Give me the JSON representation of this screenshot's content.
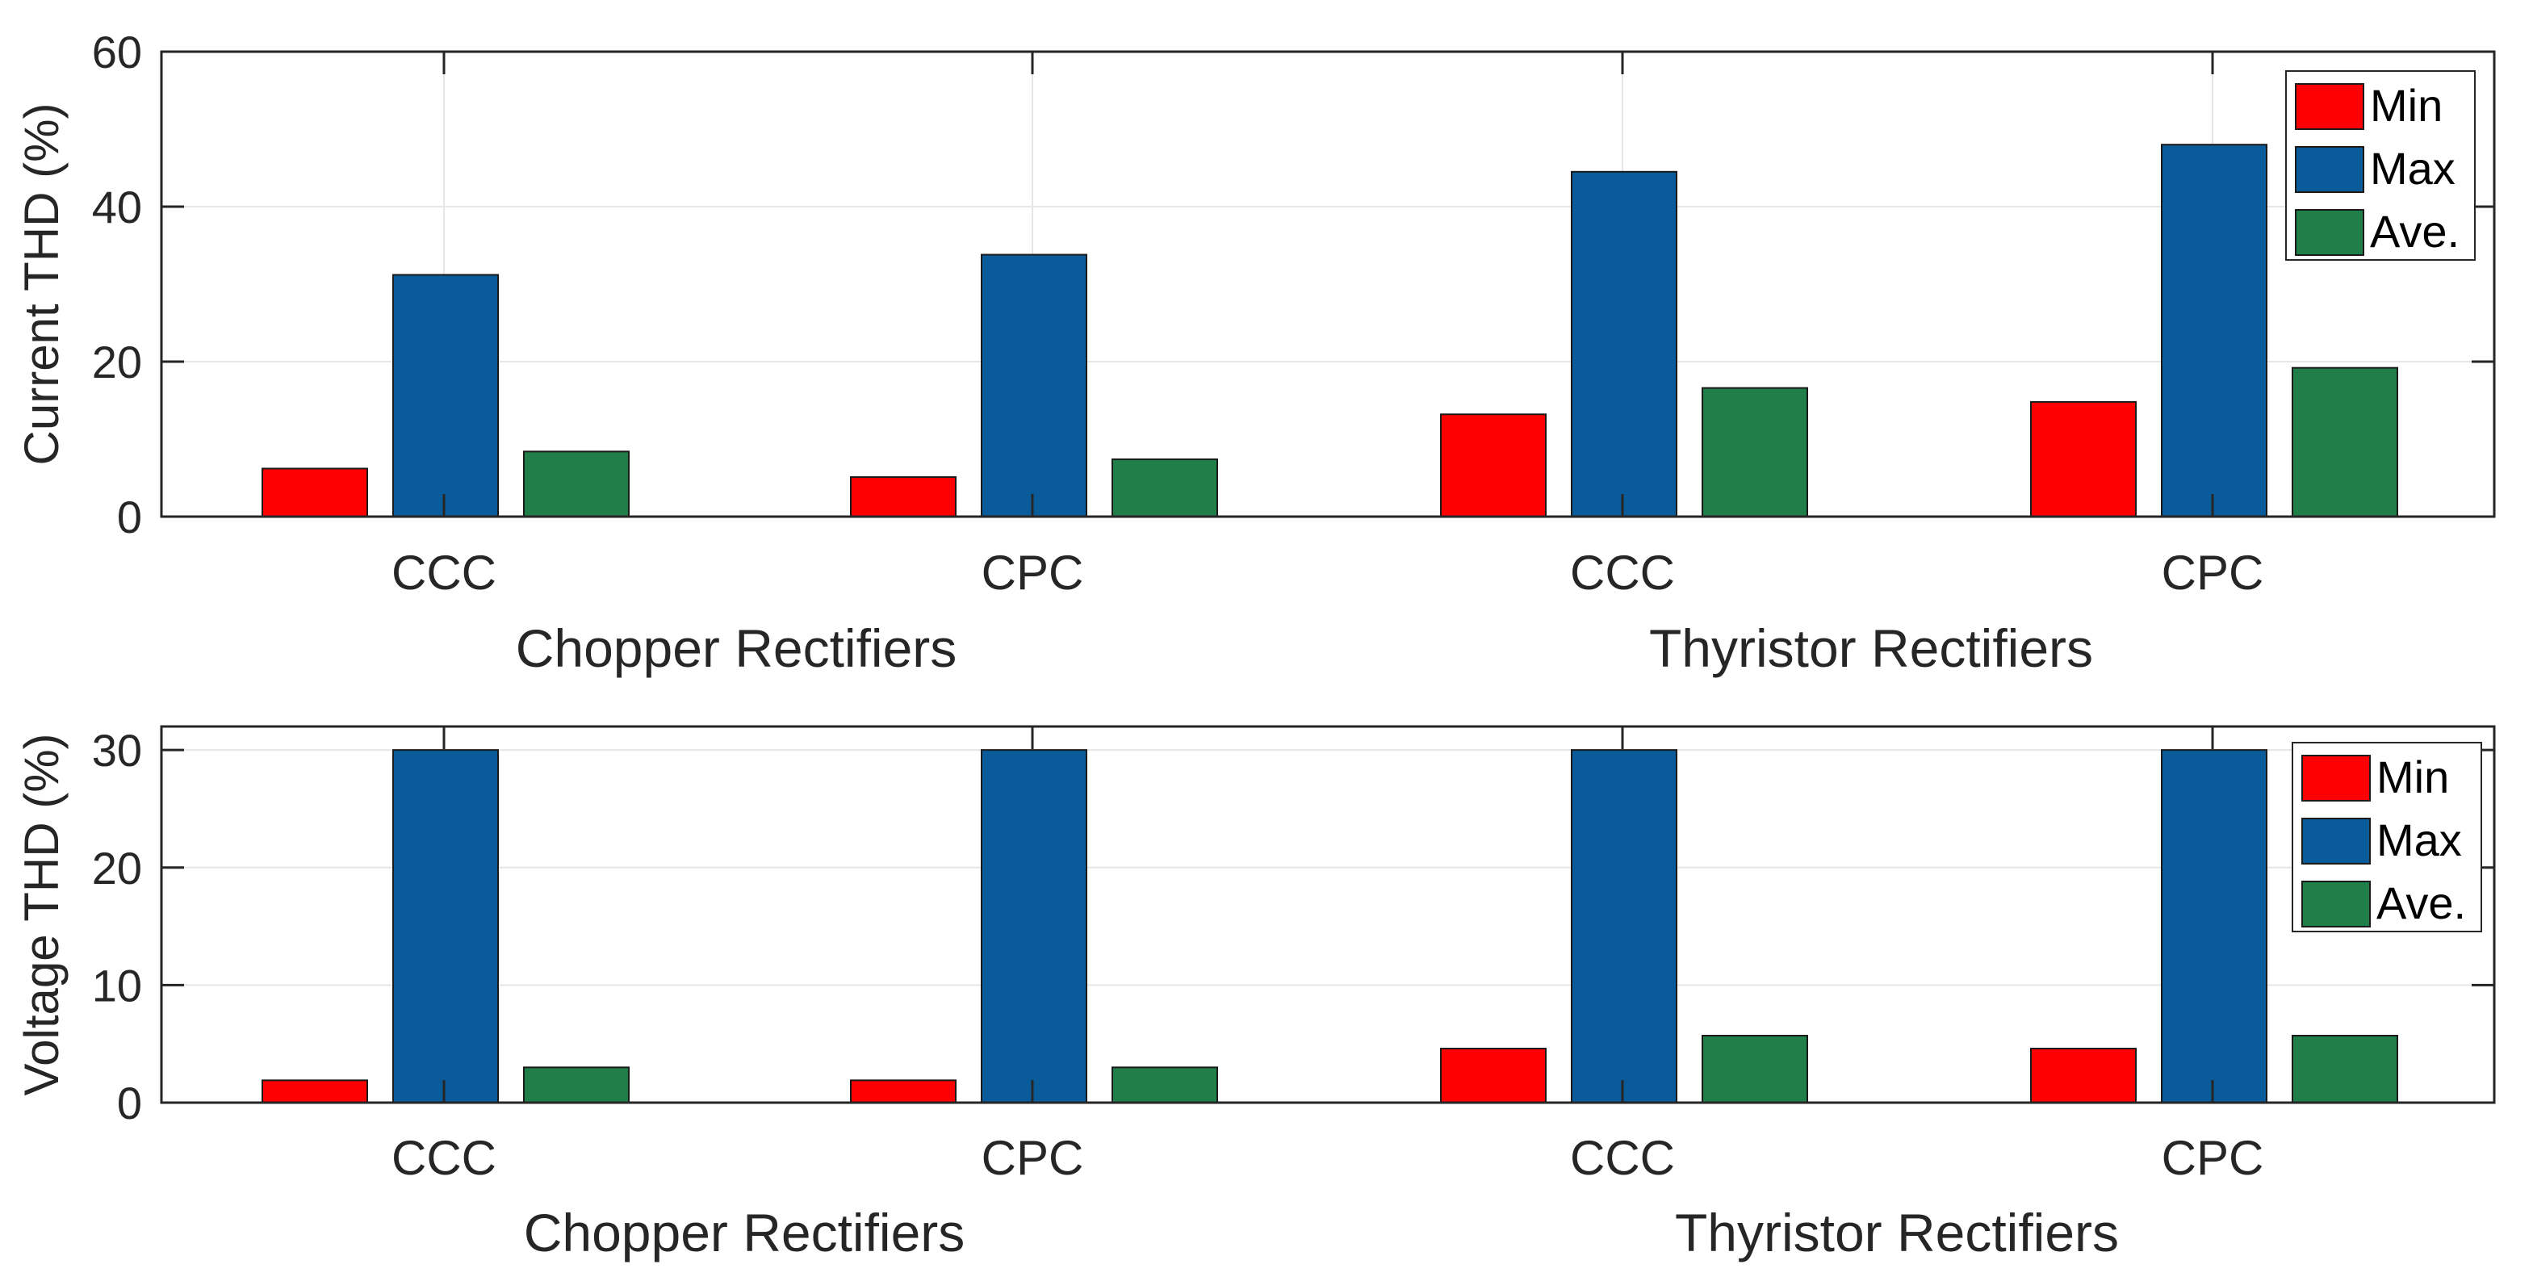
{
  "colors": {
    "Min": "#ff0000",
    "Max": "#0a5b9a",
    "Ave.": "#207e49"
  },
  "chart_data": [
    {
      "type": "bar",
      "ylabel": "Current THD (%)",
      "ylim": [
        0,
        60
      ],
      "yticks": [
        0,
        20,
        40,
        60
      ],
      "grid": true,
      "legend_position": "top-right",
      "categories": [
        "CCC",
        "CPC",
        "CCC",
        "CPC"
      ],
      "groups": [
        {
          "label": "Chopper Rectifiers",
          "categories": [
            0,
            1
          ]
        },
        {
          "label": "Thyristor Rectifiers",
          "categories": [
            2,
            3
          ]
        }
      ],
      "series": [
        {
          "name": "Min",
          "values": [
            6.2,
            5.1,
            13.2,
            14.8
          ]
        },
        {
          "name": "Max",
          "values": [
            31.2,
            33.8,
            44.5,
            48.0
          ]
        },
        {
          "name": "Ave.",
          "values": [
            8.4,
            7.4,
            16.6,
            19.2
          ]
        }
      ]
    },
    {
      "type": "bar",
      "ylabel": "Voltage THD (%)",
      "ylim": [
        0,
        32
      ],
      "yticks": [
        0,
        10,
        20,
        30
      ],
      "grid": true,
      "legend_position": "top-right",
      "categories": [
        "CCC",
        "CPC",
        "CCC",
        "CPC"
      ],
      "groups": [
        {
          "label": "Chopper Rectifiers",
          "categories": [
            0,
            1
          ]
        },
        {
          "label": "Thyristor Rectifiers",
          "categories": [
            2,
            3
          ]
        }
      ],
      "series": [
        {
          "name": "Min",
          "values": [
            1.9,
            1.9,
            4.6,
            4.6
          ]
        },
        {
          "name": "Max",
          "values": [
            30.0,
            30.0,
            30.0,
            30.0
          ]
        },
        {
          "name": "Ave.",
          "values": [
            3.0,
            3.0,
            5.7,
            5.7
          ]
        }
      ]
    }
  ]
}
